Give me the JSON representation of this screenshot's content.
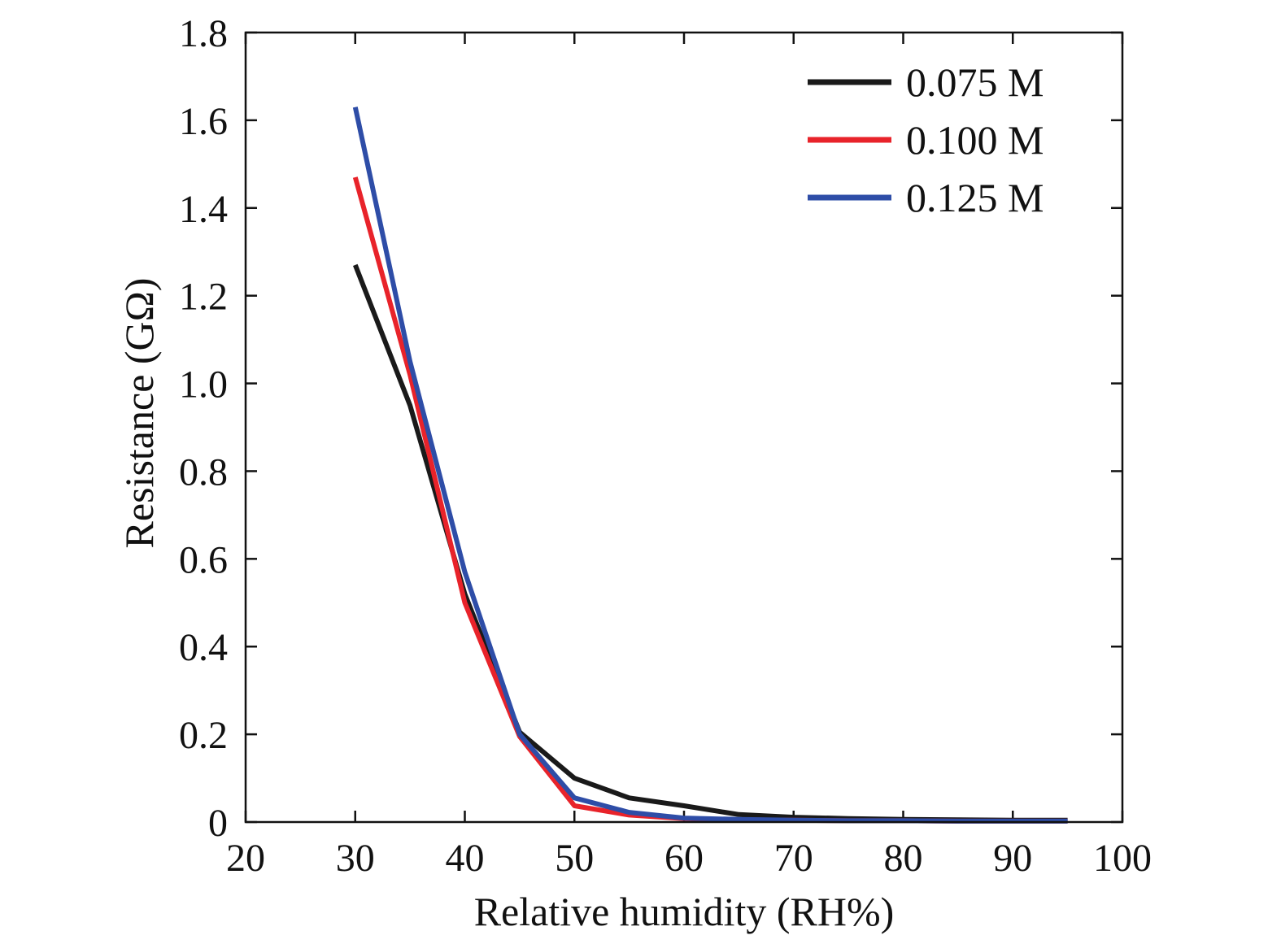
{
  "chart_data": {
    "type": "line",
    "xlabel": "Relative humidity (RH%)",
    "ylabel": "Resistance (GΩ)",
    "xlim": [
      20,
      100
    ],
    "ylim": [
      0,
      1.8
    ],
    "xticks": [
      "20",
      "30",
      "40",
      "50",
      "60",
      "70",
      "80",
      "90",
      "100"
    ],
    "yticks": [
      "0",
      "0.2",
      "0.4",
      "0.6",
      "0.8",
      "1.0",
      "1.2",
      "1.4",
      "1.6",
      "1.8"
    ],
    "grid": false,
    "legend_position": "top-right",
    "x": [
      30,
      35,
      40,
      45,
      50,
      55,
      60,
      65,
      70,
      75,
      80,
      85,
      90,
      95
    ],
    "series": [
      {
        "name": "0.075 M",
        "color": "#1a1a1a",
        "values": [
          1.27,
          0.95,
          0.52,
          0.205,
          0.1,
          0.055,
          0.037,
          0.017,
          0.011,
          0.008,
          0.006,
          0.005,
          0.004,
          0.004
        ]
      },
      {
        "name": "0.100 M",
        "color": "#e8232a",
        "values": [
          1.47,
          1.02,
          0.5,
          0.195,
          0.037,
          0.016,
          0.008,
          0.005,
          0.004,
          0.003,
          0.003,
          0.002,
          0.002,
          0.002
        ]
      },
      {
        "name": "0.125 M",
        "color": "#2e4da7",
        "values": [
          1.63,
          1.05,
          0.57,
          0.2,
          0.055,
          0.022,
          0.009,
          0.006,
          0.004,
          0.003,
          0.003,
          0.002,
          0.002,
          0.002
        ]
      }
    ]
  }
}
